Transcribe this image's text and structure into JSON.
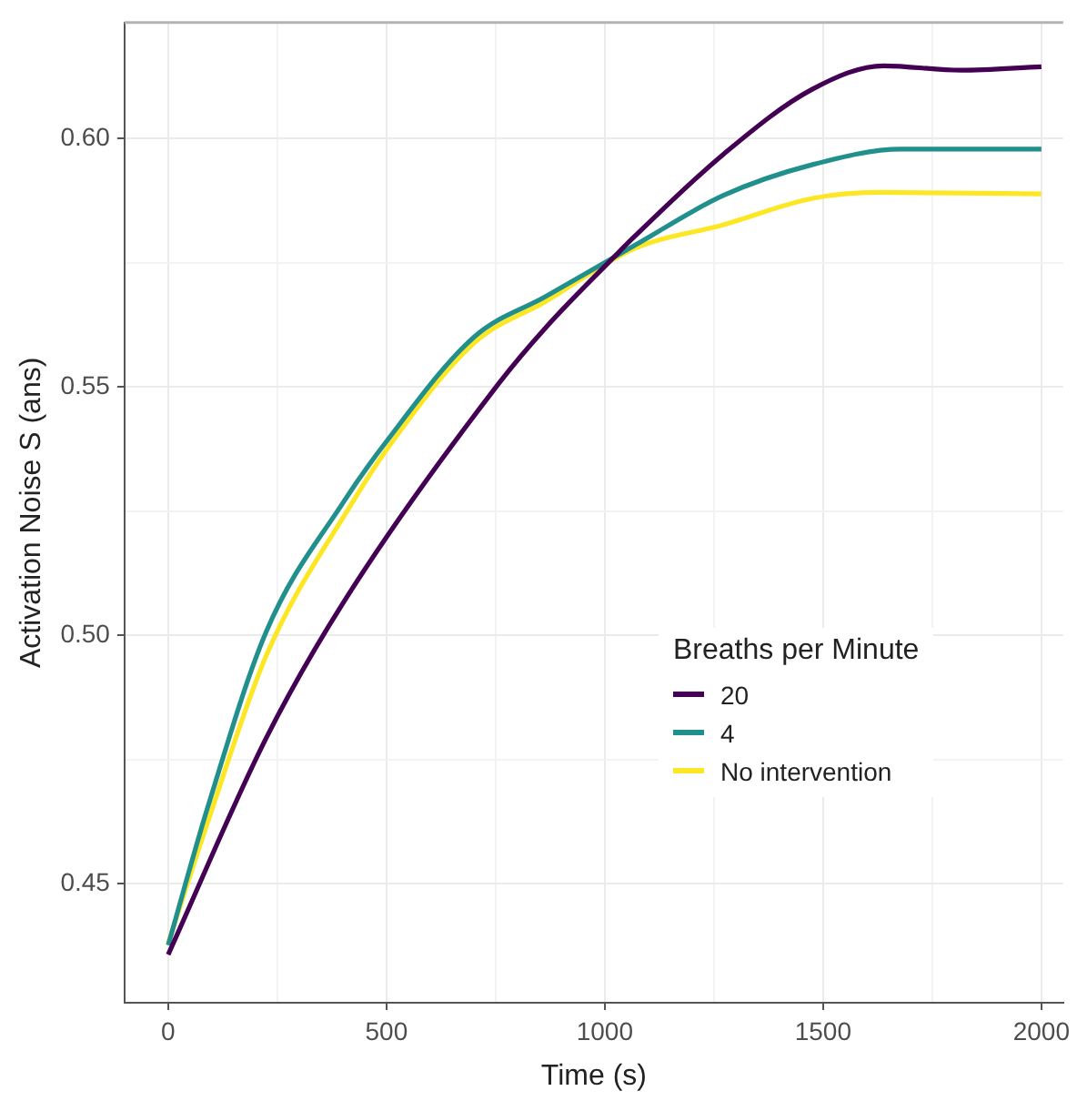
{
  "chart_data": {
    "type": "line",
    "xlabel": "Time (s)",
    "ylabel": "Activation Noise S (ans)",
    "legend_title": "Breaths per Minute",
    "legend": "right",
    "grid": true,
    "line_style": "solid",
    "marker": "none",
    "xlim": [
      -100,
      2050
    ],
    "ylim": [
      0.426,
      0.6234
    ],
    "xticks": [
      0,
      {
        "value": 250,
        "label": null
      },
      500,
      {
        "value": 750,
        "label": null
      },
      1000,
      {
        "value": 1250,
        "label": null
      },
      1500,
      {
        "value": 1750,
        "label": null
      },
      2000
    ],
    "yticks": [
      {
        "value": 0.45,
        "label": "0.45"
      },
      {
        "value": 0.475,
        "label": null
      },
      {
        "value": 0.5,
        "label": "0.50"
      },
      {
        "value": 0.525,
        "label": null
      },
      {
        "value": 0.55,
        "label": "0.55"
      },
      {
        "value": 0.575,
        "label": null
      },
      {
        "value": 0.6,
        "label": "0.60"
      }
    ],
    "series": [
      {
        "name": "20",
        "color": "#440154",
        "x": [
          0,
          225,
          402,
          756,
          864,
          1027,
          1068,
          1272,
          1476,
          1639,
          1815,
          2000
        ],
        "values": [
          0.4357,
          0.4794,
          0.5067,
          0.5506,
          0.5619,
          0.5767,
          0.5803,
          0.5969,
          0.61,
          0.6147,
          0.6138,
          0.6145
        ]
      },
      {
        "name": "4",
        "color": "#21908c",
        "x": [
          0,
          90,
          225,
          402,
          497,
          701,
          864,
          1068,
          1272,
          1476,
          1680,
          2000
        ],
        "values": [
          0.4376,
          0.4652,
          0.5008,
          0.5269,
          0.5387,
          0.5601,
          0.5682,
          0.5785,
          0.5886,
          0.5948,
          0.5979,
          0.5979
        ]
      },
      {
        "name": "No intervention",
        "color": "#fde725",
        "x": [
          0,
          90,
          225,
          423,
          511,
          701,
          864,
          1068,
          1272,
          1476,
          1625,
          2000
        ],
        "values": [
          0.438,
          0.4622,
          0.496,
          0.5269,
          0.5387,
          0.5589,
          0.5672,
          0.5779,
          0.5827,
          0.588,
          0.5892,
          0.5889
        ]
      }
    ]
  }
}
